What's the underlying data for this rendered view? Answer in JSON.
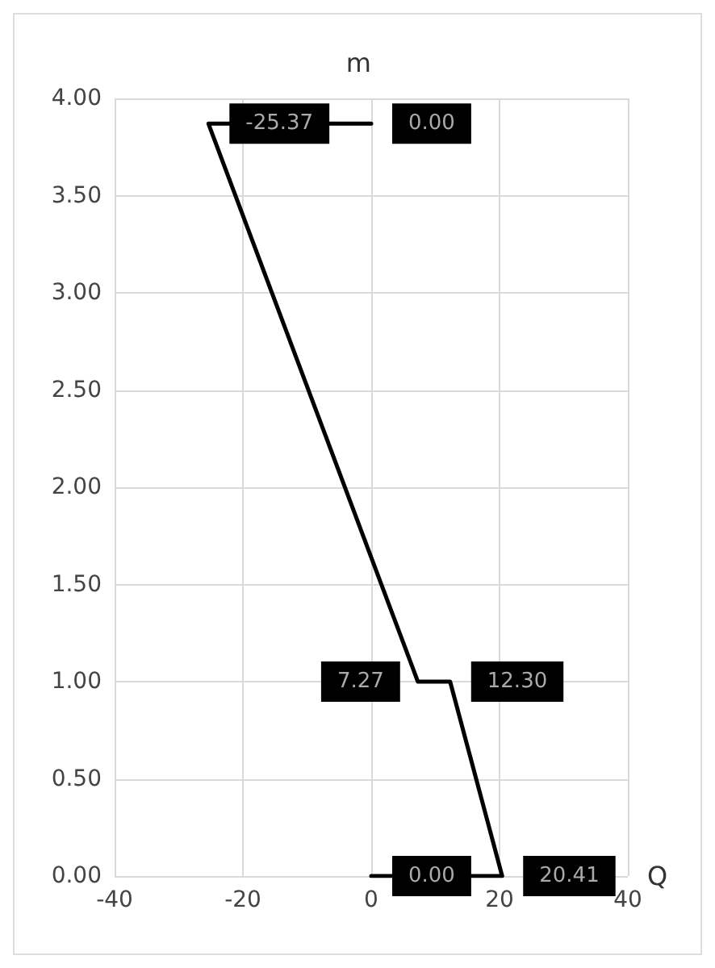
{
  "chart_data": {
    "type": "line",
    "orientation": "horizontal",
    "xlabel": "Q",
    "ylabel": "m",
    "x": [
      3.87,
      3.87,
      1.0,
      1.0,
      0,
      0
    ],
    "series": [
      {
        "color": "#000000",
        "values": [
          0,
          -25.37,
          7.27,
          12.3,
          20.41,
          0
        ],
        "value_labels": [
          "0.00",
          "-25.37",
          "7.27",
          "12.30",
          "20.41",
          "0.00"
        ]
      }
    ],
    "xlim": [
      -40,
      40
    ],
    "xticks": [
      -40,
      -20,
      0,
      20,
      40
    ],
    "ylim": [
      0,
      4
    ],
    "yticks": [
      {
        "value": 0,
        "label": "0.00"
      },
      {
        "value": 0.5,
        "label": "0.50"
      },
      {
        "value": 1,
        "label": "1.00"
      },
      {
        "value": 1.5,
        "label": "1.50"
      },
      {
        "value": 2,
        "label": "2.00"
      },
      {
        "value": 2.5,
        "label": "2.50"
      },
      {
        "value": 3,
        "label": "3.00"
      },
      {
        "value": 3.5,
        "label": "3.50"
      },
      {
        "value": 4,
        "label": "4.00"
      }
    ],
    "grid": true,
    "line_style": "solid"
  }
}
